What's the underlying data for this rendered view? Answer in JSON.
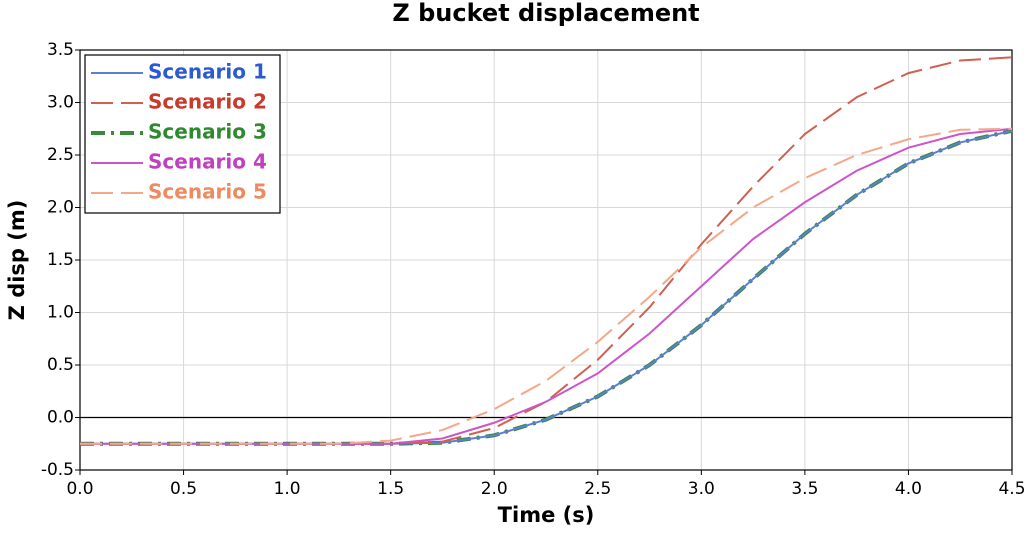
{
  "chart_data": {
    "type": "line",
    "title": "Z bucket displacement",
    "x_label": "Time (s)",
    "y_label": "Z disp (m)",
    "x": [
      0,
      0.25,
      0.5,
      0.75,
      1.0,
      1.25,
      1.5,
      1.75,
      2.0,
      2.25,
      2.5,
      2.75,
      3.0,
      3.25,
      3.5,
      3.75,
      4.0,
      4.25,
      4.5
    ],
    "series": [
      {
        "name": "Scenario 1",
        "color": "#5b7fd6",
        "label_color": "#2a5bd0",
        "dash": "solid",
        "width": 2,
        "values": [
          -0.25,
          -0.25,
          -0.25,
          -0.25,
          -0.25,
          -0.25,
          -0.25,
          -0.24,
          -0.17,
          -0.02,
          0.2,
          0.5,
          0.88,
          1.32,
          1.75,
          2.12,
          2.42,
          2.62,
          2.73
        ]
      },
      {
        "name": "Scenario 2",
        "color": "#d06050",
        "label_color": "#c83a2a",
        "dash": "longdash",
        "width": 2,
        "values": [
          -0.25,
          -0.25,
          -0.25,
          -0.25,
          -0.25,
          -0.25,
          -0.25,
          -0.23,
          -0.1,
          0.15,
          0.55,
          1.05,
          1.65,
          2.2,
          2.7,
          3.05,
          3.28,
          3.4,
          3.43
        ]
      },
      {
        "name": "Scenario 3",
        "color": "#3a8a3a",
        "label_color": "#2f8a2f",
        "dash": "dashdot",
        "width": 4,
        "values": [
          -0.25,
          -0.25,
          -0.25,
          -0.25,
          -0.25,
          -0.25,
          -0.25,
          -0.24,
          -0.17,
          -0.02,
          0.2,
          0.5,
          0.88,
          1.32,
          1.75,
          2.12,
          2.42,
          2.62,
          2.73
        ]
      },
      {
        "name": "Scenario 4",
        "color": "#cc55cc",
        "label_color": "#c040c0",
        "dash": "solid",
        "width": 2,
        "values": [
          -0.25,
          -0.25,
          -0.25,
          -0.25,
          -0.25,
          -0.25,
          -0.25,
          -0.2,
          -0.05,
          0.15,
          0.42,
          0.8,
          1.25,
          1.7,
          2.05,
          2.35,
          2.57,
          2.7,
          2.75
        ]
      },
      {
        "name": "Scenario 5",
        "color": "#f4a888",
        "label_color": "#ee8a60",
        "dash": "longdash",
        "width": 2,
        "values": [
          -0.25,
          -0.25,
          -0.25,
          -0.25,
          -0.25,
          -0.25,
          -0.22,
          -0.12,
          0.08,
          0.35,
          0.72,
          1.15,
          1.62,
          2.0,
          2.28,
          2.5,
          2.65,
          2.74,
          2.75
        ]
      }
    ],
    "xlim": [
      0,
      4.5
    ],
    "xticks": [
      {
        "value": 0,
        "label": "0.0"
      },
      0.5,
      {
        "value": 1,
        "label": "1.0"
      },
      1.5,
      {
        "value": 2,
        "label": "2.0"
      },
      2.5,
      {
        "value": 3,
        "label": "3.0"
      },
      3.5,
      {
        "value": 4,
        "label": "4.0"
      },
      4.5
    ],
    "ylim": [
      -0.5,
      3.5
    ],
    "yticks": [
      -0.5,
      {
        "value": 0,
        "label": "0.0"
      },
      0.5,
      {
        "value": 1,
        "label": "1.0"
      },
      1.5,
      {
        "value": 2,
        "label": "2.0"
      },
      2.5,
      {
        "value": 3,
        "label": "3.0"
      },
      3.5
    ],
    "grid": true,
    "zero_line": true,
    "legend": "upper-left"
  }
}
